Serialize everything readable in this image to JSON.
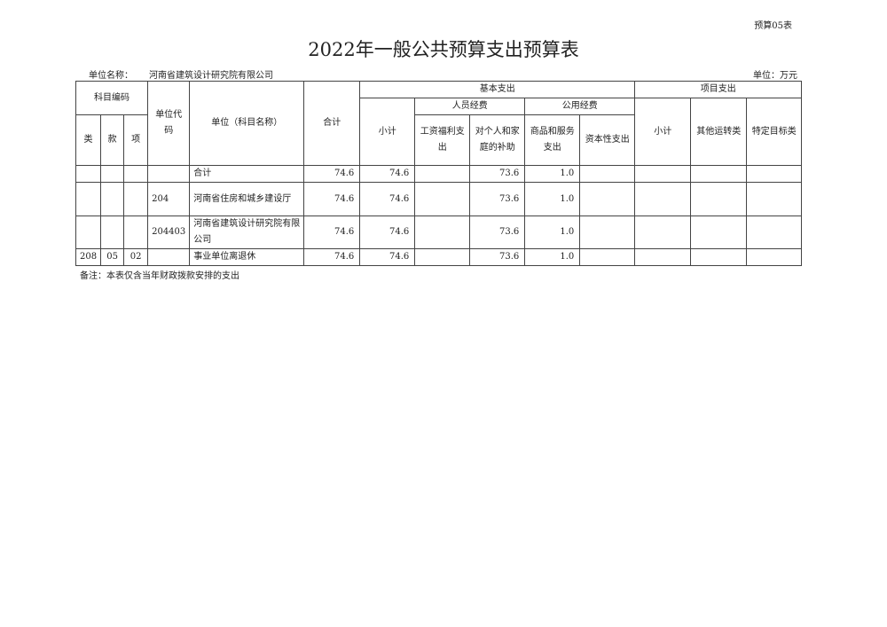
{
  "form_no": "预算05表",
  "title": "2022年一般公共预算支出预算表",
  "unit_name_label": "单位名称：",
  "unit_name": "河南省建筑设计研究院有限公司",
  "unit_label": "单位：万元",
  "headers": {
    "subject_code": "科目编码",
    "lei": "类",
    "kuan": "款",
    "xiang": "项",
    "unit_code": "单位代码",
    "unit_subject": "单位（科目名称）",
    "total": "合计",
    "basic": "基本支出",
    "personnel": "人员经费",
    "public": "公用经费",
    "basic_subtotal": "小计",
    "wages": "工资福利支出",
    "subsidy": "对个人和家庭的补助",
    "goods": "商品和服务支出",
    "capital": "资本性支出",
    "project": "项目支出",
    "project_subtotal": "小计",
    "other_ops": "其他运转类",
    "specific": "特定目标类"
  },
  "rows": [
    {
      "lei": "",
      "kuan": "",
      "xiang": "",
      "code": "",
      "name": "合计",
      "total": "74.6",
      "subtotal": "74.6",
      "wages": "",
      "subsidy": "73.6",
      "goods": "1.0",
      "capital": "",
      "p_sub": "",
      "p_other": "",
      "p_spec": ""
    },
    {
      "lei": "",
      "kuan": "",
      "xiang": "",
      "code": "204",
      "name": "河南省住房和城乡建设厅",
      "total": "74.6",
      "subtotal": "74.6",
      "wages": "",
      "subsidy": "73.6",
      "goods": "1.0",
      "capital": "",
      "p_sub": "",
      "p_other": "",
      "p_spec": ""
    },
    {
      "lei": "",
      "kuan": "",
      "xiang": "",
      "code": "204403",
      "name": "河南省建筑设计研究院有限公司",
      "total": "74.6",
      "subtotal": "74.6",
      "wages": "",
      "subsidy": "73.6",
      "goods": "1.0",
      "capital": "",
      "p_sub": "",
      "p_other": "",
      "p_spec": ""
    },
    {
      "lei": "208",
      "kuan": "05",
      "xiang": "02",
      "code": "",
      "name": "事业单位离退休",
      "total": "74.6",
      "subtotal": "74.6",
      "wages": "",
      "subsidy": "73.6",
      "goods": "1.0",
      "capital": "",
      "p_sub": "",
      "p_other": "",
      "p_spec": ""
    }
  ],
  "note": "备注：本表仅含当年财政拨款安排的支出"
}
